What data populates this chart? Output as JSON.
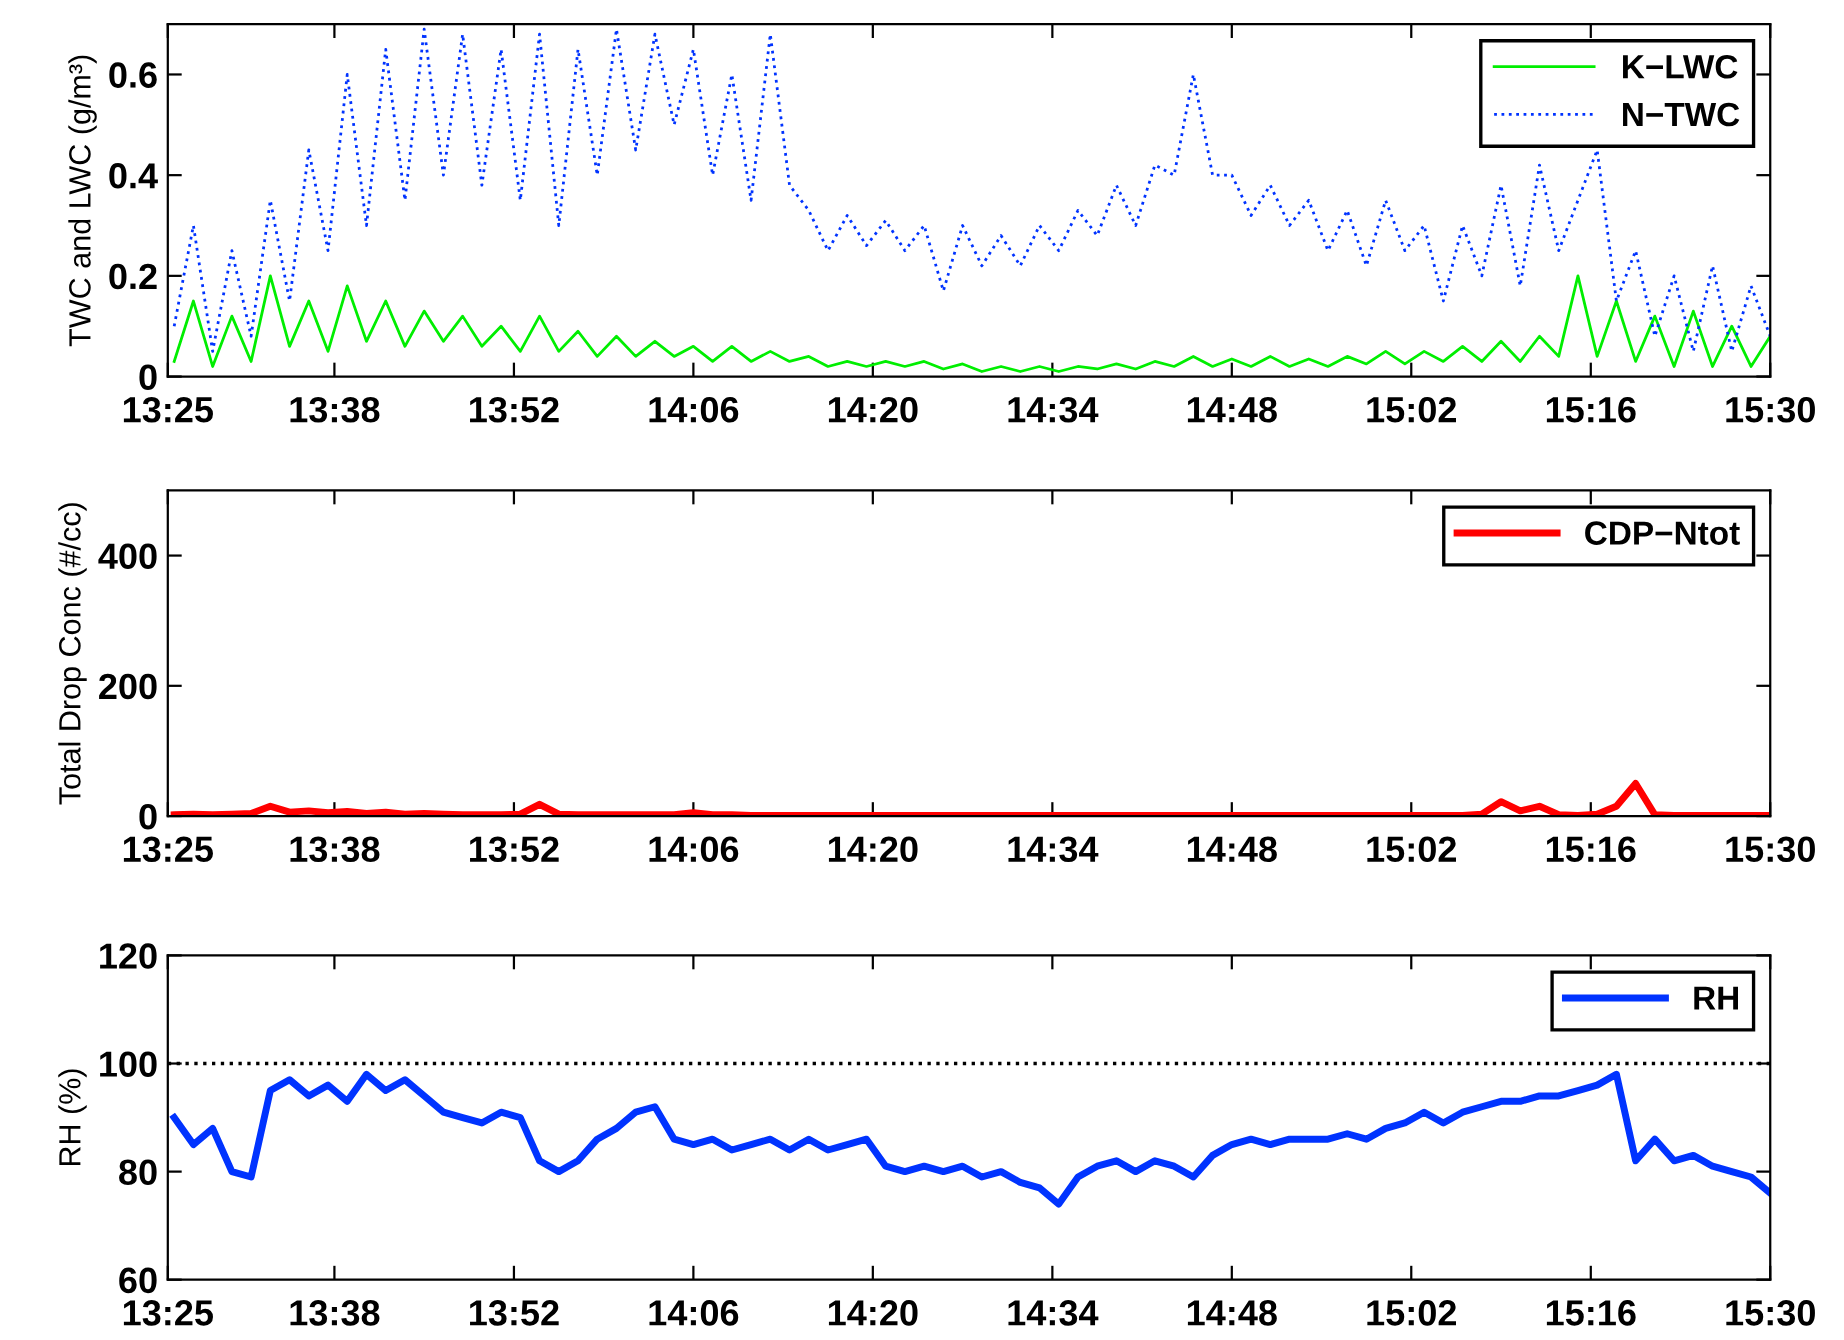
{
  "chart_data": [
    {
      "type": "line",
      "ylabel": "TWC and LWC (g/m³)",
      "legend": "top right",
      "grid": false,
      "x": [
        13.425,
        13.45,
        13.475,
        13.5,
        13.525,
        13.55,
        13.575,
        13.6,
        13.625,
        13.65,
        13.675,
        13.7,
        13.725,
        13.75,
        13.775,
        13.8,
        13.825,
        13.85,
        13.875,
        13.9,
        13.925,
        13.95,
        13.975,
        14.0,
        14.025,
        14.05,
        14.075,
        14.1,
        14.125,
        14.15,
        14.175,
        14.2,
        14.225,
        14.25,
        14.275,
        14.3,
        14.325,
        14.35,
        14.375,
        14.4,
        14.425,
        14.45,
        14.475,
        14.5,
        14.525,
        14.55,
        14.575,
        14.6,
        14.625,
        14.65,
        14.675,
        14.7,
        14.725,
        14.75,
        14.775,
        14.8,
        14.825,
        14.85,
        14.875,
        14.9,
        14.925,
        14.95,
        14.975,
        15.0,
        15.025,
        15.05,
        15.075,
        15.1,
        15.125,
        15.15,
        15.175,
        15.2,
        15.225,
        15.25,
        15.275,
        15.3,
        15.325,
        15.35,
        15.375,
        15.4,
        15.425,
        15.45,
        15.475,
        15.5
      ],
      "xlim": [
        13.4167,
        15.5
      ],
      "xticks": [
        {
          "value": 13.4167,
          "label": "13:25"
        },
        {
          "value": 13.6333,
          "label": "13:38"
        },
        {
          "value": 13.8667,
          "label": "13:52"
        },
        {
          "value": 14.1,
          "label": "14:06"
        },
        {
          "value": 14.3333,
          "label": "14:20"
        },
        {
          "value": 14.5667,
          "label": "14:34"
        },
        {
          "value": 14.8,
          "label": "14:48"
        },
        {
          "value": 15.0333,
          "label": "15:02"
        },
        {
          "value": 15.2667,
          "label": "15:16"
        },
        {
          "value": 15.5,
          "label": "15:30"
        }
      ],
      "ylim": [
        0,
        0.7
      ],
      "yticks": [
        0,
        0.2,
        0.4,
        0.6
      ],
      "series": [
        {
          "name": "K−LWC",
          "color": "#00ee00",
          "line_style": "solid",
          "values": [
            0.03,
            0.15,
            0.02,
            0.12,
            0.03,
            0.2,
            0.06,
            0.15,
            0.05,
            0.18,
            0.07,
            0.15,
            0.06,
            0.13,
            0.07,
            0.12,
            0.06,
            0.1,
            0.05,
            0.12,
            0.05,
            0.09,
            0.04,
            0.08,
            0.04,
            0.07,
            0.04,
            0.06,
            0.03,
            0.06,
            0.03,
            0.05,
            0.03,
            0.04,
            0.02,
            0.03,
            0.02,
            0.03,
            0.02,
            0.03,
            0.015,
            0.025,
            0.01,
            0.02,
            0.01,
            0.02,
            0.01,
            0.02,
            0.015,
            0.025,
            0.015,
            0.03,
            0.02,
            0.04,
            0.02,
            0.035,
            0.02,
            0.04,
            0.02,
            0.035,
            0.02,
            0.04,
            0.025,
            0.05,
            0.025,
            0.05,
            0.03,
            0.06,
            0.03,
            0.07,
            0.03,
            0.08,
            0.04,
            0.2,
            0.04,
            0.15,
            0.03,
            0.12,
            0.02,
            0.13,
            0.02,
            0.1,
            0.02,
            0.08
          ]
        },
        {
          "name": "N−TWC",
          "color": "#0033ff",
          "line_style": "dotted",
          "values": [
            0.1,
            0.3,
            0.05,
            0.25,
            0.08,
            0.35,
            0.15,
            0.45,
            0.25,
            0.6,
            0.3,
            0.65,
            0.35,
            0.69,
            0.4,
            0.68,
            0.38,
            0.65,
            0.35,
            0.68,
            0.3,
            0.65,
            0.4,
            0.69,
            0.45,
            0.68,
            0.5,
            0.65,
            0.4,
            0.6,
            0.35,
            0.68,
            0.38,
            0.33,
            0.25,
            0.32,
            0.26,
            0.31,
            0.25,
            0.3,
            0.17,
            0.3,
            0.22,
            0.28,
            0.22,
            0.3,
            0.25,
            0.33,
            0.28,
            0.38,
            0.3,
            0.42,
            0.4,
            0.6,
            0.4,
            0.4,
            0.32,
            0.38,
            0.3,
            0.35,
            0.25,
            0.33,
            0.22,
            0.35,
            0.25,
            0.3,
            0.15,
            0.3,
            0.2,
            0.38,
            0.18,
            0.42,
            0.25,
            0.35,
            0.45,
            0.15,
            0.25,
            0.08,
            0.2,
            0.05,
            0.22,
            0.05,
            0.18,
            0.08
          ]
        }
      ]
    },
    {
      "type": "line",
      "ylabel": "Total Drop Conc (#/cc)",
      "legend": "top right",
      "grid": false,
      "x": [
        13.425,
        13.45,
        13.475,
        13.5,
        13.525,
        13.55,
        13.575,
        13.6,
        13.625,
        13.65,
        13.675,
        13.7,
        13.725,
        13.75,
        13.775,
        13.8,
        13.825,
        13.85,
        13.875,
        13.9,
        13.925,
        13.95,
        13.975,
        14.0,
        14.025,
        14.05,
        14.075,
        14.1,
        14.125,
        14.15,
        14.175,
        14.2,
        14.225,
        14.25,
        14.275,
        14.3,
        14.325,
        14.35,
        14.375,
        14.4,
        14.425,
        14.45,
        14.475,
        14.5,
        14.525,
        14.55,
        14.575,
        14.6,
        14.625,
        14.65,
        14.675,
        14.7,
        14.725,
        14.75,
        14.775,
        14.8,
        14.825,
        14.85,
        14.875,
        14.9,
        14.925,
        14.95,
        14.975,
        15.0,
        15.025,
        15.05,
        15.075,
        15.1,
        15.125,
        15.15,
        15.175,
        15.2,
        15.225,
        15.25,
        15.275,
        15.3,
        15.325,
        15.35,
        15.375,
        15.4,
        15.425,
        15.45,
        15.475,
        15.5
      ],
      "xlim": [
        13.4167,
        15.5
      ],
      "xticks": [
        {
          "value": 13.4167,
          "label": "13:25"
        },
        {
          "value": 13.6333,
          "label": "13:38"
        },
        {
          "value": 13.8667,
          "label": "13:52"
        },
        {
          "value": 14.1,
          "label": "14:06"
        },
        {
          "value": 14.3333,
          "label": "14:20"
        },
        {
          "value": 14.5667,
          "label": "14:34"
        },
        {
          "value": 14.8,
          "label": "14:48"
        },
        {
          "value": 15.0333,
          "label": "15:02"
        },
        {
          "value": 15.2667,
          "label": "15:16"
        },
        {
          "value": 15.5,
          "label": "15:30"
        }
      ],
      "ylim": [
        0,
        500
      ],
      "yticks": [
        0,
        200,
        400
      ],
      "series": [
        {
          "name": "CDP−Ntot",
          "color": "#ff0000",
          "line_style": "solid",
          "values": [
            2,
            3,
            2,
            3,
            4,
            15,
            6,
            8,
            5,
            7,
            4,
            6,
            3,
            4,
            3,
            2,
            2,
            2,
            3,
            18,
            3,
            2,
            2,
            2,
            2,
            2,
            2,
            5,
            2,
            2,
            1,
            1,
            1,
            1,
            1,
            1,
            1,
            1,
            1,
            1,
            1,
            1,
            1,
            1,
            1,
            1,
            1,
            1,
            1,
            1,
            1,
            1,
            1,
            1,
            1,
            1,
            1,
            1,
            1,
            1,
            1,
            1,
            1,
            1,
            1,
            1,
            1,
            1,
            3,
            22,
            8,
            15,
            2,
            1,
            3,
            15,
            50,
            2,
            1,
            1,
            1,
            1,
            1,
            1
          ]
        }
      ]
    },
    {
      "type": "line",
      "ylabel": "RH (%)",
      "legend": "top right",
      "grid": false,
      "x": [
        13.425,
        13.45,
        13.475,
        13.5,
        13.525,
        13.55,
        13.575,
        13.6,
        13.625,
        13.65,
        13.675,
        13.7,
        13.725,
        13.75,
        13.775,
        13.8,
        13.825,
        13.85,
        13.875,
        13.9,
        13.925,
        13.95,
        13.975,
        14.0,
        14.025,
        14.05,
        14.075,
        14.1,
        14.125,
        14.15,
        14.175,
        14.2,
        14.225,
        14.25,
        14.275,
        14.3,
        14.325,
        14.35,
        14.375,
        14.4,
        14.425,
        14.45,
        14.475,
        14.5,
        14.525,
        14.55,
        14.575,
        14.6,
        14.625,
        14.65,
        14.675,
        14.7,
        14.725,
        14.75,
        14.775,
        14.8,
        14.825,
        14.85,
        14.875,
        14.9,
        14.925,
        14.95,
        14.975,
        15.0,
        15.025,
        15.05,
        15.075,
        15.1,
        15.125,
        15.15,
        15.175,
        15.2,
        15.225,
        15.25,
        15.275,
        15.3,
        15.325,
        15.35,
        15.375,
        15.4,
        15.425,
        15.45,
        15.475,
        15.5
      ],
      "xlim": [
        13.4167,
        15.5
      ],
      "xticks": [
        {
          "value": 13.4167,
          "label": "13:25"
        },
        {
          "value": 13.6333,
          "label": "13:38"
        },
        {
          "value": 13.8667,
          "label": "13:52"
        },
        {
          "value": 14.1,
          "label": "14:06"
        },
        {
          "value": 14.3333,
          "label": "14:20"
        },
        {
          "value": 14.5667,
          "label": "14:34"
        },
        {
          "value": 14.8,
          "label": "14:48"
        },
        {
          "value": 15.0333,
          "label": "15:02"
        },
        {
          "value": 15.2667,
          "label": "15:16"
        },
        {
          "value": 15.5,
          "label": "15:30"
        }
      ],
      "ylim": [
        60,
        120
      ],
      "yticks": [
        60,
        80,
        100,
        120
      ],
      "ref_lines": [
        {
          "axis": "y",
          "value": 100,
          "color": "#000000",
          "line_style": "dotted"
        }
      ],
      "series": [
        {
          "name": "RH",
          "color": "#0033ff",
          "line_style": "solid",
          "values": [
            90,
            85,
            88,
            80,
            79,
            95,
            97,
            94,
            96,
            93,
            98,
            95,
            97,
            94,
            91,
            90,
            89,
            91,
            90,
            82,
            80,
            82,
            86,
            88,
            91,
            92,
            86,
            85,
            86,
            84,
            85,
            86,
            84,
            86,
            84,
            85,
            86,
            81,
            80,
            81,
            80,
            81,
            79,
            80,
            78,
            77,
            74,
            79,
            81,
            82,
            80,
            82,
            81,
            79,
            83,
            85,
            86,
            85,
            86,
            86,
            86,
            87,
            86,
            88,
            89,
            91,
            89,
            91,
            92,
            93,
            93,
            94,
            94,
            95,
            96,
            98,
            82,
            86,
            82,
            83,
            81,
            80,
            79,
            76
          ]
        }
      ]
    }
  ]
}
